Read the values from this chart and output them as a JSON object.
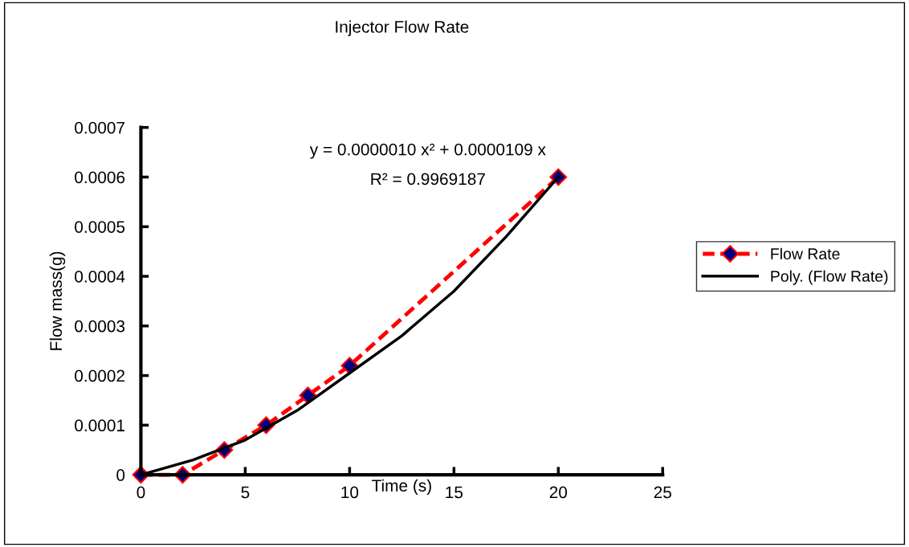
{
  "chart_data": {
    "type": "line",
    "title": "Injector Flow Rate",
    "xlabel": "Time (s)",
    "ylabel": "Flow mass(g)",
    "series": [
      {
        "name": "Flow Rate",
        "color": "#ff0000",
        "line_style": "dashed",
        "marker": "diamond",
        "x": [
          0,
          2,
          4,
          6,
          8,
          10,
          20
        ],
        "values": [
          0,
          0,
          5e-05,
          0.0001,
          0.00016,
          0.00022,
          0.0006
        ]
      },
      {
        "name": "Poly. (Flow Rate)",
        "color": "#000000",
        "line_style": "solid",
        "marker": "none",
        "x": [
          0,
          2.5,
          5,
          7.5,
          10,
          12.5,
          15,
          17.5,
          20
        ],
        "values": [
          0,
          3e-05,
          7e-05,
          0.00013,
          0.000205,
          0.00028,
          0.00037,
          0.00048,
          0.0006
        ]
      }
    ],
    "annotations": [
      "y = 0.0000010 x² + 0.0000109 x",
      "R² = 0.9969187"
    ],
    "xlim": [
      0,
      25
    ],
    "xticks": [
      0,
      5,
      10,
      15,
      20,
      25
    ],
    "ylim": [
      0,
      0.0007
    ],
    "yticks": [
      0,
      0.0001,
      0.0002,
      0.0003,
      0.0004,
      0.0005,
      0.0006,
      0.0007
    ],
    "grid": false,
    "legend": "right"
  }
}
